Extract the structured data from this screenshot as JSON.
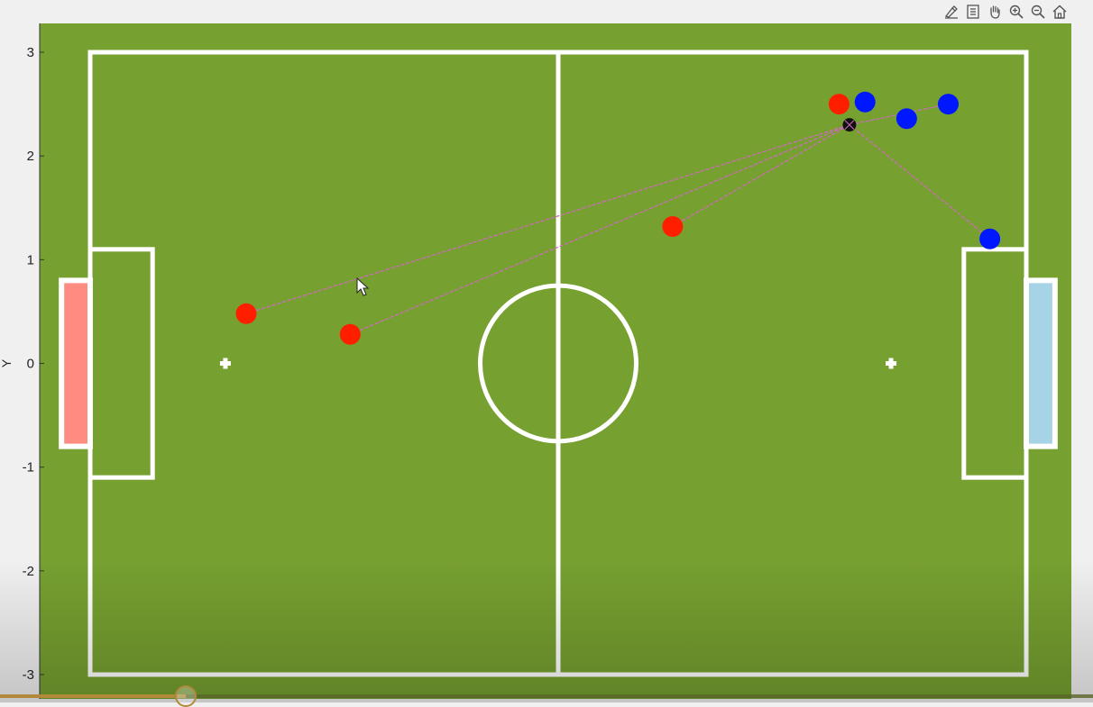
{
  "toolbar": {
    "icons": [
      "brush-icon",
      "data-tips-icon",
      "pan-icon",
      "zoom-in-icon",
      "zoom-out-icon",
      "home-icon"
    ]
  },
  "colors": {
    "background": "#f0f0f0",
    "pitch": "#76a030",
    "lines": "#ffffff",
    "red_team": "#ff1f00",
    "blue_team": "#0018ff",
    "pass_lines": "#d069c0",
    "red_goal": "#ff8c80",
    "blue_goal": "#a6d3e6",
    "ball": "#111111"
  },
  "chart_data": {
    "type": "scatter",
    "title": "",
    "xlabel": "",
    "ylabel": "Y",
    "xlim": [
      -4.5,
      4.5
    ],
    "ylim": [
      -3,
      3
    ],
    "yticks": [
      3,
      2,
      1,
      0,
      -1,
      -2,
      -3
    ],
    "pitch": {
      "field_x": [
        -4.5,
        4.5
      ],
      "field_y": [
        -3,
        3
      ],
      "penalty_box_depth": 0.6,
      "penalty_box_half_width": 1.1,
      "goal_depth": 0.25,
      "goal_half_width": 0.8,
      "center_circle_radius": 0.75,
      "penalty_spots": [
        [
          -3.2,
          0
        ],
        [
          3.2,
          0
        ]
      ]
    },
    "ball": {
      "x": 2.8,
      "y": 2.3
    },
    "red_team": [
      {
        "x": -3.0,
        "y": 0.48
      },
      {
        "x": -2.0,
        "y": 0.28
      },
      {
        "x": 1.1,
        "y": 1.32
      },
      {
        "x": 2.7,
        "y": 2.5
      }
    ],
    "blue_team": [
      {
        "x": 2.95,
        "y": 2.52
      },
      {
        "x": 3.35,
        "y": 2.36
      },
      {
        "x": 3.75,
        "y": 2.5
      },
      {
        "x": 4.15,
        "y": 1.2
      }
    ],
    "pass_lines": [
      {
        "from": [
          -3.0,
          0.48
        ],
        "to": [
          2.8,
          2.3
        ]
      },
      {
        "from": [
          -2.0,
          0.28
        ],
        "to": [
          2.8,
          2.3
        ]
      },
      {
        "from": [
          1.1,
          1.32
        ],
        "to": [
          2.8,
          2.3
        ]
      },
      {
        "from": [
          3.75,
          2.5
        ],
        "to": [
          2.8,
          2.3
        ]
      },
      {
        "from": [
          4.15,
          1.2
        ],
        "to": [
          2.8,
          2.3
        ]
      }
    ]
  },
  "slider": {
    "value": 0.17
  }
}
